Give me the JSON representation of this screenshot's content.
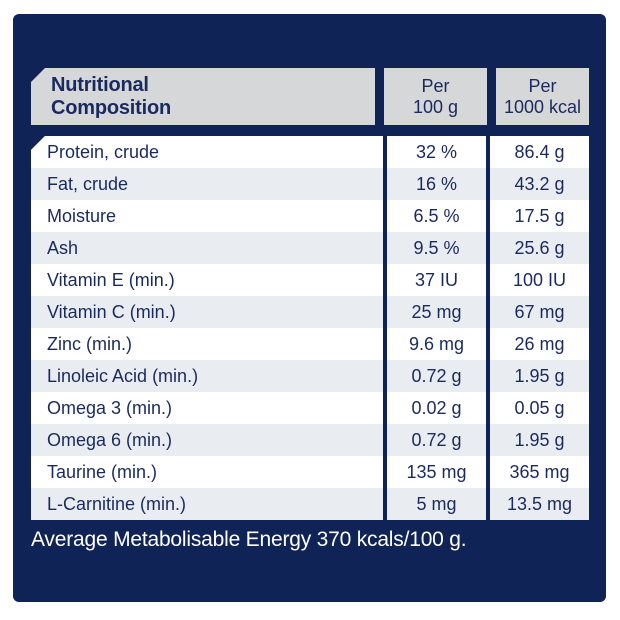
{
  "colors": {
    "card_navy": "#102356",
    "text_navy": "#1b2a5e",
    "header_gray": "#d5d7d9",
    "row_stripe": "#e9edf1",
    "panel_white": "#ffffff",
    "footer_text": "#ffffff"
  },
  "header": {
    "title_lines": [
      "Nutritional",
      "Composition"
    ],
    "per_100g_lines": [
      "Per",
      "100 g"
    ],
    "per_1000kcal_lines": [
      "Per",
      "1000 kcal"
    ]
  },
  "rows": [
    {
      "label": "Protein, crude",
      "per_100g": "32 %",
      "per_1000kcal": "86.4 g"
    },
    {
      "label": "Fat, crude",
      "per_100g": "16 %",
      "per_1000kcal": "43.2 g"
    },
    {
      "label": "Moisture",
      "per_100g": "6.5 %",
      "per_1000kcal": "17.5 g"
    },
    {
      "label": "Ash",
      "per_100g": "9.5 %",
      "per_1000kcal": "25.6 g"
    },
    {
      "label": "Vitamin E (min.)",
      "per_100g": "37 IU",
      "per_1000kcal": "100 IU"
    },
    {
      "label": "Vitamin C (min.)",
      "per_100g": "25 mg",
      "per_1000kcal": "67 mg"
    },
    {
      "label": "Zinc (min.)",
      "per_100g": "9.6 mg",
      "per_1000kcal": "26 mg"
    },
    {
      "label": "Linoleic Acid (min.)",
      "per_100g": "0.72 g",
      "per_1000kcal": "1.95 g"
    },
    {
      "label": "Omega 3 (min.)",
      "per_100g": "0.02 g",
      "per_1000kcal": "0.05 g"
    },
    {
      "label": "Omega 6 (min.)",
      "per_100g": "0.72 g",
      "per_1000kcal": "1.95 g"
    },
    {
      "label": "Taurine (min.)",
      "per_100g": "135 mg",
      "per_1000kcal": "365 mg"
    },
    {
      "label": "L-Carnitine (min.)",
      "per_100g": "5 mg",
      "per_1000kcal": "13.5 mg"
    }
  ],
  "footer": {
    "text": "Average Metabolisable Energy 370 kcals/100 g."
  }
}
